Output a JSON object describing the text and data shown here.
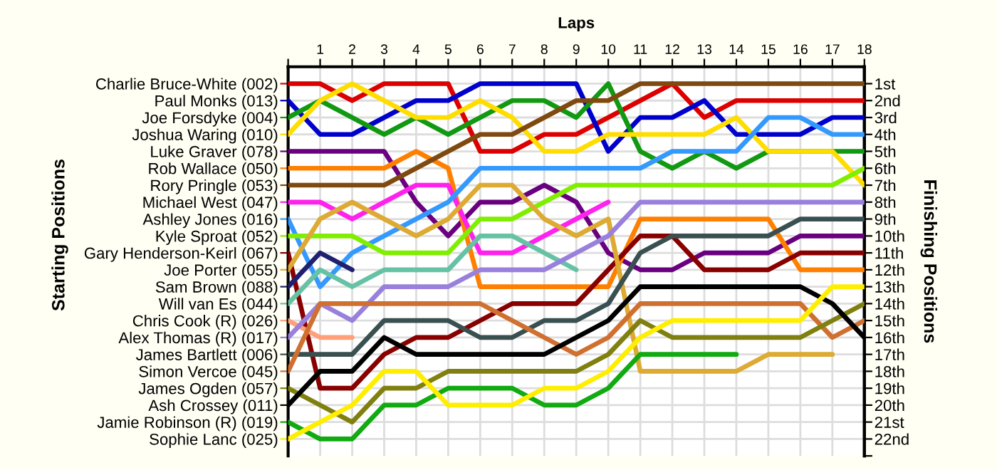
{
  "chart_data": {
    "type": "line",
    "xlabel": "Laps",
    "annotations": [
      "Starting Positions"
    ],
    "y2label": "Finishing Positions",
    "x": [
      0,
      1,
      2,
      3,
      4,
      5,
      6,
      7,
      8,
      9,
      10,
      11,
      12,
      13,
      14,
      15,
      16,
      17,
      18
    ],
    "xlim": [
      0,
      18
    ],
    "xticks": [
      {
        "value": 0,
        "label": null
      },
      1,
      2,
      3,
      4,
      5,
      6,
      7,
      8,
      9,
      10,
      11,
      12,
      13,
      14,
      15,
      16,
      17,
      18
    ],
    "y2lim": [
      23,
      0
    ],
    "y2ticks": [
      {
        "value": 1,
        "label": "1st"
      },
      {
        "value": 2,
        "label": "2nd"
      },
      {
        "value": 3,
        "label": "3rd"
      },
      {
        "value": 4,
        "label": "4th"
      },
      {
        "value": 5,
        "label": "5th"
      },
      {
        "value": 6,
        "label": "6th"
      },
      {
        "value": 7,
        "label": "7th"
      },
      {
        "value": 8,
        "label": "8th"
      },
      {
        "value": 9,
        "label": "9th"
      },
      {
        "value": 10,
        "label": "10th"
      },
      {
        "value": 11,
        "label": "11th"
      },
      {
        "value": 12,
        "label": "12th"
      },
      {
        "value": 13,
        "label": "13th"
      },
      {
        "value": 14,
        "label": "14th"
      },
      {
        "value": 15,
        "label": "15th"
      },
      {
        "value": 16,
        "label": "16th"
      },
      {
        "value": 17,
        "label": "17th"
      },
      {
        "value": 18,
        "label": "18th"
      },
      {
        "value": 19,
        "label": "19th"
      },
      {
        "value": 20,
        "label": "20th"
      },
      {
        "value": 21,
        "label": "21st"
      },
      {
        "value": 22,
        "label": "22nd"
      },
      {
        "value": 23,
        "label": null
      }
    ],
    "grid": true,
    "legend": "left",
    "marker": "none",
    "line_style": "solid",
    "series": [
      {
        "name": "Charlie Bruce-White (002)",
        "axis": "y2",
        "color": "#dd0000",
        "values": [
          1,
          1,
          2,
          1,
          1,
          1,
          5,
          5,
          4,
          4,
          3,
          2,
          1,
          3,
          2,
          2,
          2,
          2,
          2
        ]
      },
      {
        "name": "Paul Monks (013)",
        "axis": "y2",
        "color": "#0000cc",
        "values": [
          2,
          4,
          4,
          3,
          2,
          2,
          1,
          1,
          1,
          1,
          5,
          3,
          3,
          2,
          4,
          4,
          4,
          3,
          3
        ]
      },
      {
        "name": "Joe Forsdyke (004)",
        "axis": "y2",
        "color": "#119911",
        "values": [
          3,
          2,
          3,
          4,
          3,
          4,
          3,
          2,
          2,
          3,
          1,
          5,
          6,
          5,
          6,
          5,
          5,
          5,
          5
        ]
      },
      {
        "name": "Joshua Waring (010)",
        "axis": "y2",
        "color": "#ffdd00",
        "values": [
          4,
          2,
          1,
          2,
          3,
          3,
          2,
          3,
          5,
          5,
          4,
          4,
          4,
          4,
          3,
          5,
          5,
          5,
          7
        ]
      },
      {
        "name": "Luke Graver (078)",
        "axis": "y2",
        "color": "#6a0080",
        "values": [
          5,
          5,
          5,
          5,
          8,
          10,
          8,
          8,
          7,
          8,
          11,
          12,
          12,
          11,
          11,
          11,
          10,
          10,
          10
        ]
      },
      {
        "name": "Rob Wallace (050)",
        "axis": "y2",
        "color": "#ff8000",
        "values": [
          6,
          6,
          6,
          6,
          5,
          6,
          13,
          13,
          13,
          13,
          13,
          9,
          9,
          9,
          9,
          9,
          12,
          12,
          12
        ]
      },
      {
        "name": "Rory Pringle (053)",
        "axis": "y2",
        "color": "#7f4a10",
        "values": [
          7,
          7,
          7,
          7,
          6,
          5,
          4,
          4,
          3,
          2,
          2,
          1,
          1,
          1,
          1,
          1,
          1,
          1,
          1
        ]
      },
      {
        "name": "Michael West (047)",
        "axis": "y2",
        "color": "#ff22ee",
        "values": [
          8,
          8,
          9,
          8,
          7,
          7,
          11,
          11,
          10,
          9,
          8,
          null,
          null,
          null,
          null,
          null,
          null,
          null,
          null
        ]
      },
      {
        "name": "Ashley Jones (016)",
        "axis": "y2",
        "color": "#3399ff",
        "values": [
          9,
          13,
          11,
          10,
          9,
          8,
          6,
          6,
          6,
          6,
          6,
          6,
          5,
          5,
          5,
          3,
          3,
          4,
          4
        ]
      },
      {
        "name": "Kyle Sproat (052)",
        "axis": "y2",
        "color": "#80ee00",
        "values": [
          10,
          10,
          10,
          11,
          11,
          11,
          9,
          9,
          8,
          7,
          7,
          7,
          7,
          7,
          7,
          7,
          7,
          7,
          6
        ]
      },
      {
        "name": "Gary Henderson-Keirl (067)",
        "axis": "y2",
        "color": "#880000",
        "values": [
          11,
          19,
          19,
          17,
          16,
          16,
          15,
          14,
          14,
          14,
          12,
          10,
          10,
          12,
          12,
          12,
          11,
          11,
          11
        ]
      },
      {
        "name": "Joe Porter (055)",
        "axis": "y2",
        "color": "#ddaa33",
        "values": [
          12,
          9,
          8,
          9,
          10,
          9,
          7,
          7,
          9,
          10,
          9,
          18,
          18,
          18,
          18,
          17,
          17,
          17,
          null
        ]
      },
      {
        "name": "Sam Brown (088)",
        "axis": "y2",
        "color": "#202070",
        "values": [
          13,
          11,
          12,
          null,
          null,
          null,
          null,
          null,
          null,
          null,
          null,
          null,
          null,
          null,
          null,
          null,
          null,
          null,
          null
        ]
      },
      {
        "name": "Will van Es (044)",
        "axis": "y2",
        "color": "#66c2a5",
        "values": [
          14,
          12,
          13,
          12,
          12,
          12,
          10,
          10,
          11,
          12,
          null,
          null,
          null,
          null,
          null,
          null,
          null,
          null,
          null
        ]
      },
      {
        "name": "Chris Cook (R) (026)",
        "axis": "y2",
        "color": "#ffa07a",
        "values": [
          15,
          16,
          16,
          null,
          null,
          null,
          null,
          null,
          null,
          null,
          null,
          null,
          null,
          null,
          null,
          null,
          null,
          null,
          null
        ]
      },
      {
        "name": "Alex Thomas (R) (017)",
        "axis": "y2",
        "color": "#9980dd",
        "values": [
          16,
          14,
          15,
          13,
          13,
          13,
          12,
          12,
          12,
          11,
          10,
          8,
          8,
          8,
          8,
          8,
          8,
          8,
          8
        ]
      },
      {
        "name": "James Bartlett (006)",
        "axis": "y2",
        "color": "#3a5050",
        "values": [
          17,
          17,
          17,
          15,
          15,
          15,
          16,
          16,
          15,
          15,
          14,
          11,
          10,
          10,
          10,
          10,
          9,
          9,
          9
        ]
      },
      {
        "name": "Simon Vercoe (045)",
        "axis": "y2",
        "color": "#d07030",
        "values": [
          18,
          14,
          14,
          14,
          14,
          14,
          14,
          15,
          16,
          17,
          16,
          14,
          14,
          14,
          14,
          14,
          14,
          16,
          15
        ]
      },
      {
        "name": "James Ogden (057)",
        "axis": "y2",
        "color": "#808010",
        "values": [
          19,
          20,
          21,
          19,
          19,
          18,
          18,
          18,
          18,
          18,
          17,
          15,
          16,
          16,
          16,
          16,
          16,
          15,
          14
        ]
      },
      {
        "name": "Ash Crossey (011)",
        "axis": "y2",
        "color": "#000000",
        "values": [
          20,
          18,
          18,
          16,
          17,
          17,
          17,
          17,
          17,
          16,
          15,
          13,
          13,
          13,
          13,
          13,
          13,
          14,
          16
        ]
      },
      {
        "name": "Jamie Robinson (R) (019)",
        "axis": "y2",
        "color": "#11aa11",
        "values": [
          21,
          22,
          22,
          20,
          20,
          19,
          19,
          19,
          20,
          20,
          19,
          17,
          17,
          17,
          17,
          null,
          null,
          null,
          null
        ]
      },
      {
        "name": "Sophie Lanc (025)",
        "axis": "y2",
        "color": "#ffee00",
        "values": [
          22,
          21,
          20,
          18,
          18,
          20,
          20,
          20,
          19,
          19,
          18,
          16,
          15,
          15,
          15,
          15,
          15,
          13,
          13
        ]
      }
    ]
  }
}
